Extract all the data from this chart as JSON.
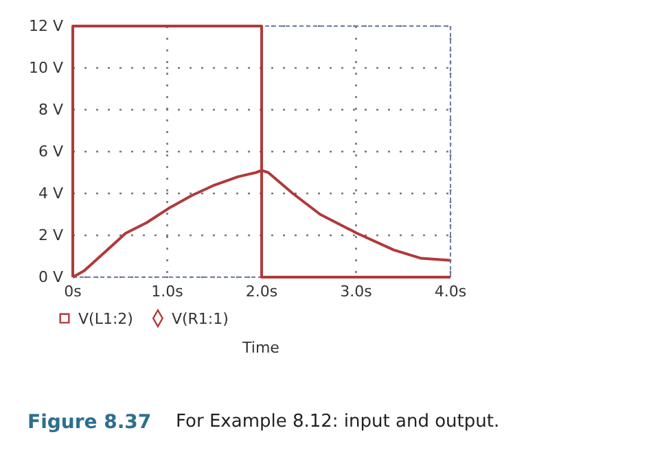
{
  "chart_data": {
    "type": "line",
    "xlabel": "Time",
    "xlim": [
      0,
      4
    ],
    "xticks": [
      {
        "value": 0,
        "label": "0s"
      },
      {
        "value": 1,
        "label": "1.0s"
      },
      {
        "value": 2,
        "label": "2.0s"
      },
      {
        "value": 3,
        "label": "3.0s"
      },
      {
        "value": 4,
        "label": "4.0s"
      }
    ],
    "ylim": [
      0,
      12
    ],
    "yticks": [
      {
        "value": 0,
        "label": "0 V"
      },
      {
        "value": 2,
        "label": "2 V"
      },
      {
        "value": 4,
        "label": "4 V"
      },
      {
        "value": 6,
        "label": "6 V"
      },
      {
        "value": 8,
        "label": "8 V"
      },
      {
        "value": 10,
        "label": "10 V"
      },
      {
        "value": 12,
        "label": "12 V"
      }
    ],
    "grid": true,
    "legend": "bottom left",
    "marker": "none",
    "line_style": "solid",
    "series": [
      {
        "name": "V(L1:2)",
        "color": "#b03a3a",
        "x": [
          0,
          0,
          2,
          2,
          4
        ],
        "values": [
          0,
          12,
          12,
          0,
          0
        ]
      },
      {
        "name": "V(R1:1)",
        "color": "#b03a3a",
        "x": [
          0,
          0.12,
          0.34,
          0.56,
          0.78,
          1.02,
          1.26,
          1.5,
          1.75,
          1.94,
          2.0,
          2.07,
          2.33,
          2.62,
          3.01,
          3.4,
          3.69,
          4.0
        ],
        "values": [
          0,
          0.3,
          1.2,
          2.1,
          2.6,
          3.3,
          3.9,
          4.4,
          4.8,
          5.0,
          5.1,
          5.0,
          4.0,
          3.0,
          2.1,
          1.3,
          0.9,
          0.8
        ]
      }
    ],
    "annotations": [
      "Figure 8.37",
      "For Example 8.12: input and output."
    ]
  }
}
